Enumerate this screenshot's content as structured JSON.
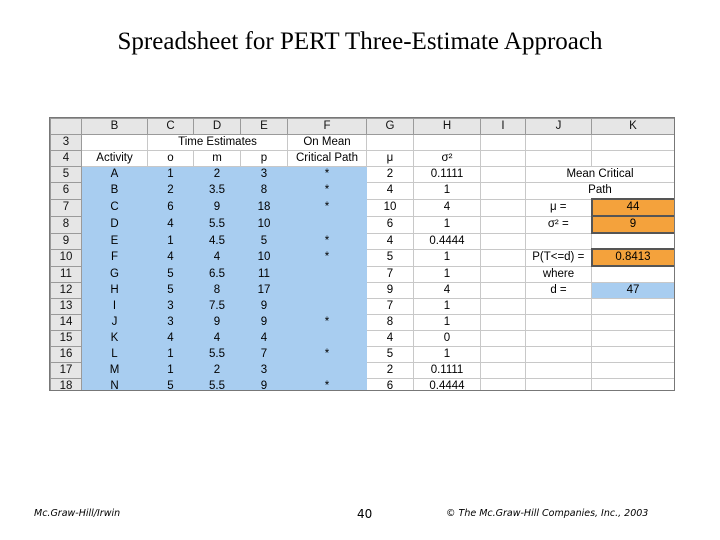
{
  "title": "Spreadsheet for PERT Three-Estimate Approach",
  "footer": {
    "publisher": "Mc.Graw-Hill/Irwin",
    "page": "40",
    "copyright": "© The Mc.Graw-Hill Companies, Inc., 2003"
  },
  "sheet": {
    "columns": [
      "B",
      "C",
      "D",
      "E",
      "F",
      "G",
      "H",
      "I",
      "J",
      "K"
    ],
    "row3": {
      "num": "3",
      "time_estimates": "Time Estimates",
      "on_mean": "On Mean"
    },
    "row4": {
      "num": "4",
      "activity": "Activity",
      "o": "o",
      "m": "m",
      "p": "p",
      "critical_path": "Critical Path",
      "mu": "μ",
      "sigma": "σ²"
    },
    "data_rows": [
      {
        "num": "5",
        "activity": "A",
        "o": "1",
        "m": "2",
        "p": "3",
        "cp": "*",
        "mu": "2",
        "var": "0.1111"
      },
      {
        "num": "6",
        "activity": "B",
        "o": "2",
        "m": "3.5",
        "p": "8",
        "cp": "*",
        "mu": "4",
        "var": "1"
      },
      {
        "num": "7",
        "activity": "C",
        "o": "6",
        "m": "9",
        "p": "18",
        "cp": "*",
        "mu": "10",
        "var": "4"
      },
      {
        "num": "8",
        "activity": "D",
        "o": "4",
        "m": "5.5",
        "p": "10",
        "cp": "",
        "mu": "6",
        "var": "1"
      },
      {
        "num": "9",
        "activity": "E",
        "o": "1",
        "m": "4.5",
        "p": "5",
        "cp": "*",
        "mu": "4",
        "var": "0.4444"
      },
      {
        "num": "10",
        "activity": "F",
        "o": "4",
        "m": "4",
        "p": "10",
        "cp": "*",
        "mu": "5",
        "var": "1"
      },
      {
        "num": "11",
        "activity": "G",
        "o": "5",
        "m": "6.5",
        "p": "11",
        "cp": "",
        "mu": "7",
        "var": "1"
      },
      {
        "num": "12",
        "activity": "H",
        "o": "5",
        "m": "8",
        "p": "17",
        "cp": "",
        "mu": "9",
        "var": "4"
      },
      {
        "num": "13",
        "activity": "I",
        "o": "3",
        "m": "7.5",
        "p": "9",
        "cp": "",
        "mu": "7",
        "var": "1"
      },
      {
        "num": "14",
        "activity": "J",
        "o": "3",
        "m": "9",
        "p": "9",
        "cp": "*",
        "mu": "8",
        "var": "1"
      },
      {
        "num": "15",
        "activity": "K",
        "o": "4",
        "m": "4",
        "p": "4",
        "cp": "",
        "mu": "4",
        "var": "0"
      },
      {
        "num": "16",
        "activity": "L",
        "o": "1",
        "m": "5.5",
        "p": "7",
        "cp": "*",
        "mu": "5",
        "var": "1"
      },
      {
        "num": "17",
        "activity": "M",
        "o": "1",
        "m": "2",
        "p": "3",
        "cp": "",
        "mu": "2",
        "var": "0.1111"
      },
      {
        "num": "18",
        "activity": "N",
        "o": "5",
        "m": "5.5",
        "p": "9",
        "cp": "*",
        "mu": "6",
        "var": "0.4444"
      }
    ],
    "side": {
      "mean_critical": "Mean Critical",
      "path": "Path",
      "mu_label": "μ =",
      "mu_value": "44",
      "sigma_label": "σ² =",
      "sigma_value": "9",
      "prob_label": "P(T<=d) =",
      "prob_value": "0.8413",
      "where": "where",
      "d_label": "d =",
      "d_value": "47"
    },
    "colors": {
      "blue": "#a8cdf0",
      "orange": "#f4a23c",
      "header_gray": "#e6e6e6"
    }
  }
}
